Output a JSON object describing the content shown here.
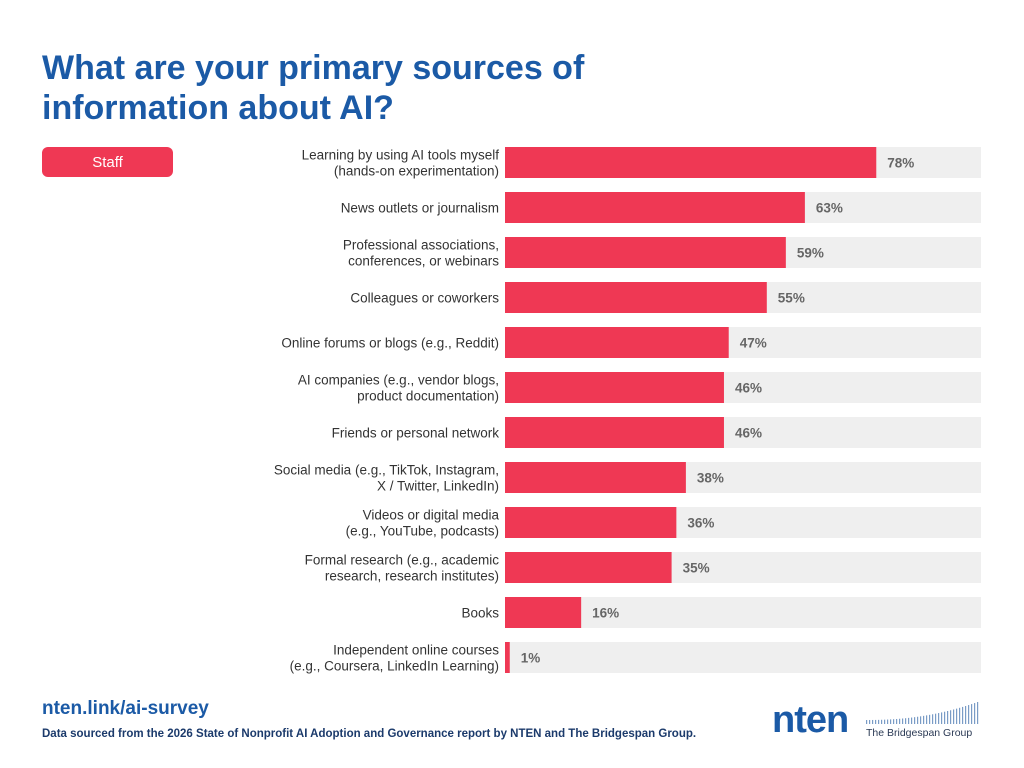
{
  "title": "What are your primary sources of information about AI?",
  "legend": {
    "label": "Staff",
    "color": "#ef3854"
  },
  "colors": {
    "bar": "#ef3854",
    "track": "#efefef",
    "title": "#1b5aa6"
  },
  "chart_data": {
    "type": "bar",
    "orientation": "horizontal",
    "title": "What are your primary sources of information about AI?",
    "xlim": [
      0,
      100
    ],
    "grid": false,
    "legend": "top-left",
    "series": [
      {
        "name": "Staff",
        "values": [
          78,
          63,
          59,
          55,
          47,
          46,
          46,
          38,
          36,
          35,
          16,
          1
        ]
      }
    ],
    "categories": [
      [
        "Learning by using AI tools myself",
        "(hands-on experimentation)"
      ],
      [
        "News outlets or journalism"
      ],
      [
        "Professional associations,",
        "conferences, or webinars"
      ],
      [
        "Colleagues or coworkers"
      ],
      [
        "Online forums or blogs (e.g., Reddit)"
      ],
      [
        "AI companies (e.g., vendor blogs,",
        "product documentation)"
      ],
      [
        "Friends or personal network"
      ],
      [
        "Social media (e.g., TikTok, Instagram,",
        "X / Twitter, LinkedIn)"
      ],
      [
        "Videos or digital media",
        "(e.g., YouTube, podcasts)"
      ],
      [
        "Formal research (e.g., academic",
        "research, research institutes)"
      ],
      [
        "Books"
      ],
      [
        "Independent online courses",
        "(e.g., Coursera, LinkedIn Learning)"
      ]
    ],
    "value_labels": [
      "78%",
      "63%",
      "59%",
      "55%",
      "47%",
      "46%",
      "46%",
      "38%",
      "36%",
      "35%",
      "16%",
      "1%"
    ]
  },
  "footer": {
    "link": "nten.link/ai-survey",
    "source": "Data sourced from the 2026 State of Nonprofit AI Adoption and Governance report by NTEN and The Bridgespan Group."
  },
  "logos": {
    "nten": "nten",
    "bridgespan": "The Bridgespan Group"
  }
}
